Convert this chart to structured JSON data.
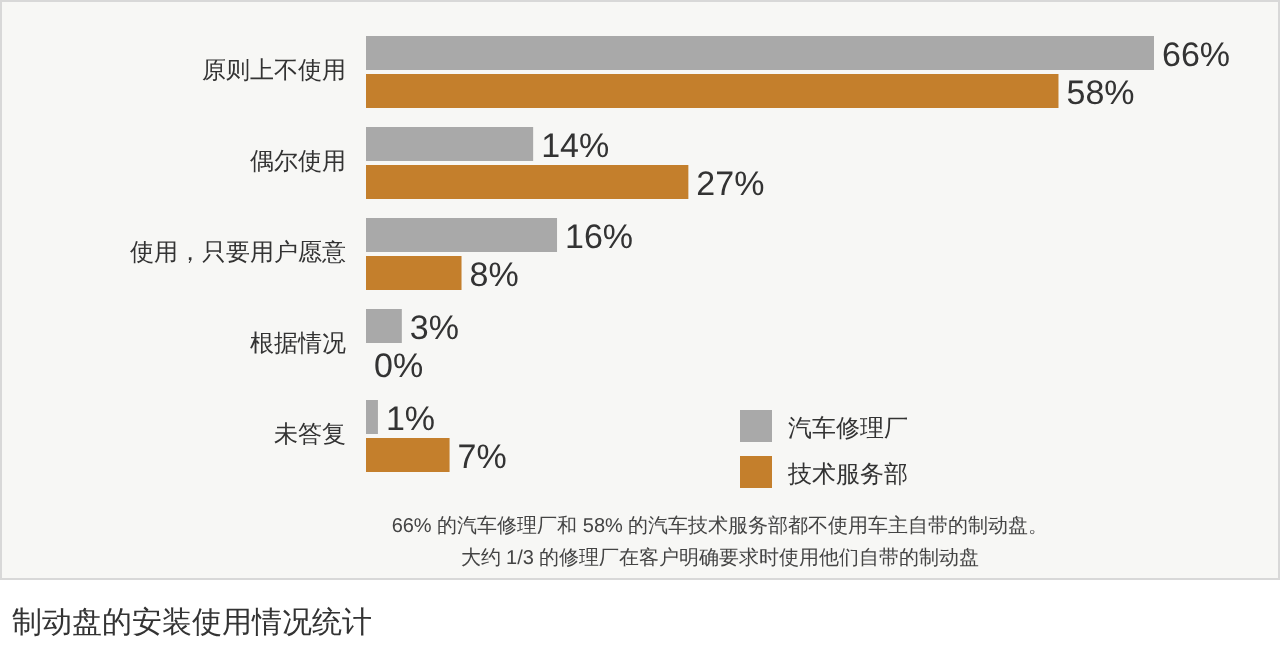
{
  "chart_data": {
    "type": "bar",
    "orientation": "horizontal",
    "title": "制动盘的安装使用情况统计",
    "categories": [
      "原则上不使用",
      "偶尔使用",
      "使用，只要用户愿意",
      "根据情况",
      "未答复"
    ],
    "series": [
      {
        "name": "汽车修理厂",
        "color": "#a9a9a9",
        "values": [
          66,
          14,
          16,
          3,
          1
        ],
        "value_labels": [
          "66%",
          "14%",
          "16%",
          "3%",
          "1%"
        ]
      },
      {
        "name": "技术服务部",
        "color": "#c47f2c",
        "values": [
          58,
          27,
          8,
          0,
          7
        ],
        "value_labels": [
          "58%",
          "27%",
          "8%",
          "0%",
          "7%"
        ]
      }
    ],
    "legend": "bottom right",
    "annotations": [
      "66% 的汽车修理厂和 58% 的汽车技术服务部都不使用车主自带的制动盘。",
      "大约 1/3 的修理厂在客户明确要求时使用他们自带的制动盘"
    ]
  }
}
